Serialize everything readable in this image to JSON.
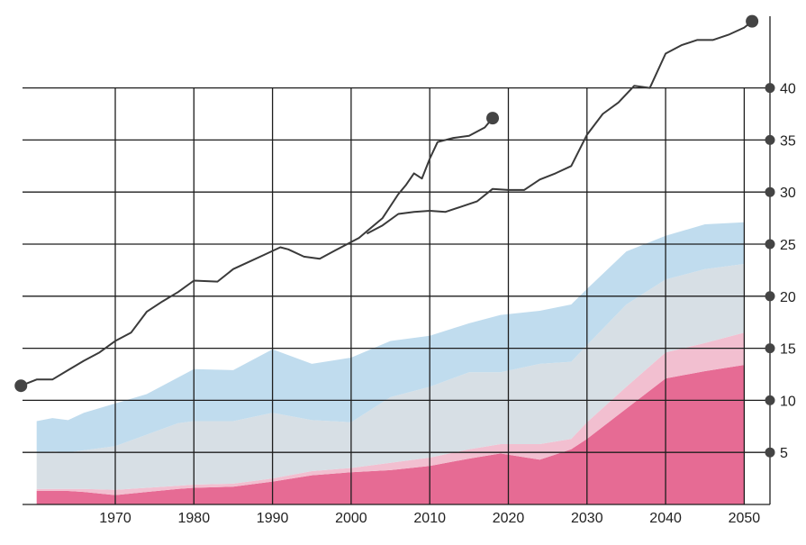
{
  "chart_data": {
    "type": "area",
    "title": "",
    "xlabel": "",
    "ylabel": "",
    "xlim": [
      1958,
      2052
    ],
    "ylim": [
      0,
      48
    ],
    "x_ticks": [
      1970,
      1980,
      1990,
      2000,
      2010,
      2020,
      2030,
      2040,
      2050
    ],
    "x_tick_labels": [
      "1970",
      "1980",
      "1990",
      "2000",
      "2010",
      "2020",
      "2030",
      "2040",
      "2050"
    ],
    "y_ticks": [
      5,
      10,
      15,
      20,
      25,
      30,
      35,
      40
    ],
    "y_tick_labels": [
      "5",
      "10",
      "15",
      "20",
      "25",
      "30",
      "35",
      "40"
    ],
    "grid": true,
    "colors": {
      "area_light_blue": "#c0dcee",
      "area_gray": "#d7dfe5",
      "area_light_pink": "#f2bfd0",
      "area_pink": "#e66b94",
      "line": "#3a3a3a",
      "grid": "#1e1e1e"
    },
    "stacked_areas": {
      "x": [
        1960,
        1962,
        1964,
        1966,
        1970,
        1974,
        1978,
        1980,
        1985,
        1990,
        1995,
        2000,
        2005,
        2010,
        2015,
        2019,
        2024,
        2028,
        2030,
        2035,
        2040,
        2045,
        2050
      ],
      "layers": [
        {
          "color": "area_pink",
          "values": [
            1.3,
            1.3,
            1.3,
            1.2,
            0.9,
            1.2,
            1.5,
            1.6,
            1.7,
            2.2,
            2.8,
            3.1,
            3.3,
            3.7,
            4.4,
            4.9,
            4.3,
            5.3,
            6.3,
            9.2,
            12.1,
            12.8,
            13.4
          ]
        },
        {
          "color": "area_light_pink",
          "values": [
            0.2,
            0.2,
            0.2,
            0.3,
            0.5,
            0.4,
            0.3,
            0.3,
            0.3,
            0.3,
            0.4,
            0.4,
            0.7,
            0.8,
            0.9,
            0.9,
            1.5,
            1.0,
            1.6,
            2.1,
            2.5,
            2.7,
            3.1
          ]
        },
        {
          "color": "area_gray",
          "values": [
            3.4,
            3.6,
            3.5,
            3.7,
            4.2,
            5.1,
            6.0,
            6.1,
            6.0,
            6.3,
            4.9,
            4.4,
            6.3,
            6.8,
            7.4,
            6.9,
            7.7,
            7.4,
            7.4,
            7.9,
            7.0,
            7.1,
            6.6
          ]
        },
        {
          "color": "area_light_blue",
          "values": [
            3.1,
            3.2,
            3.1,
            3.6,
            4.1,
            3.9,
            4.4,
            5.0,
            4.9,
            6.1,
            5.4,
            6.2,
            5.4,
            4.9,
            4.7,
            5.5,
            5.1,
            5.5,
            5.4,
            5.1,
            4.2,
            4.3,
            4.0
          ]
        }
      ]
    },
    "series": [
      {
        "x": [
          1958,
          1960,
          1962,
          1964,
          1966,
          1968,
          1970,
          1972,
          1974,
          1976,
          1978,
          1980,
          1983,
          1985,
          1987,
          1989,
          1991,
          1992,
          1994,
          1996,
          1998,
          2001,
          2004,
          2006,
          2007,
          2008,
          2009,
          2010,
          2011,
          2013,
          2015,
          2017,
          2018
        ],
        "y": [
          11.4,
          12.0,
          12.0,
          12.9,
          13.8,
          14.6,
          15.7,
          16.5,
          18.5,
          19.5,
          20.4,
          21.5,
          21.4,
          22.6,
          23.3,
          24.0,
          24.7,
          24.5,
          23.8,
          23.6,
          24.4,
          25.6,
          27.5,
          29.8,
          30.7,
          31.8,
          31.3,
          33.2,
          34.8,
          35.2,
          35.4,
          36.2,
          37.1
        ]
      },
      {
        "x": [
          2002,
          2004,
          2006,
          2008,
          2010,
          2012,
          2014,
          2016,
          2018,
          2020,
          2022,
          2024,
          2026,
          2028,
          2030,
          2032,
          2034,
          2036,
          2038,
          2040,
          2042,
          2044,
          2046,
          2048,
          2050,
          2051
        ],
        "y": [
          26.0,
          26.8,
          27.9,
          28.1,
          28.2,
          28.1,
          28.6,
          29.1,
          30.3,
          30.2,
          30.2,
          31.2,
          31.8,
          32.5,
          35.5,
          37.5,
          38.6,
          40.2,
          40.0,
          43.3,
          44.1,
          44.6,
          44.6,
          45.1,
          45.8,
          46.4
        ]
      }
    ]
  }
}
